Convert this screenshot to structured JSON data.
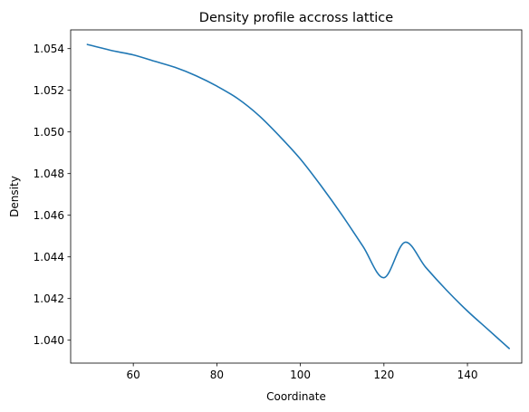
{
  "chart_data": {
    "type": "line",
    "title": "Density profile accross lattice",
    "xlabel": "Coordinate",
    "ylabel": "Density",
    "xlim": [
      45,
      153
    ],
    "ylim": [
      1.0389,
      1.0549
    ],
    "grid": false,
    "xticks": [
      {
        "value": 60,
        "label": "60"
      },
      {
        "value": 80,
        "label": "80"
      },
      {
        "value": 100,
        "label": "100"
      },
      {
        "value": 120,
        "label": "120"
      },
      {
        "value": 140,
        "label": "140"
      }
    ],
    "yticks": [
      {
        "value": 1.04,
        "label": "1.040"
      },
      {
        "value": 1.042,
        "label": "1.042"
      },
      {
        "value": 1.044,
        "label": "1.044"
      },
      {
        "value": 1.046,
        "label": "1.046"
      },
      {
        "value": 1.048,
        "label": "1.048"
      },
      {
        "value": 1.05,
        "label": "1.050"
      },
      {
        "value": 1.052,
        "label": "1.052"
      },
      {
        "value": 1.054,
        "label": "1.054"
      }
    ],
    "series": [
      {
        "color": "#1f77b4",
        "x": [
          49,
          55,
          60,
          65,
          70,
          75,
          80,
          85,
          90,
          95,
          100,
          105,
          110,
          115,
          120,
          125,
          130,
          135,
          140,
          145,
          150
        ],
        "y": [
          1.0542,
          1.0539,
          1.0537,
          1.0534,
          1.0531,
          1.0527,
          1.0522,
          1.0516,
          1.0508,
          1.0498,
          1.0487,
          1.0474,
          1.046,
          1.0445,
          1.043,
          1.0447,
          1.0435,
          1.0424,
          1.0414,
          1.0405,
          1.0396
        ]
      }
    ]
  }
}
